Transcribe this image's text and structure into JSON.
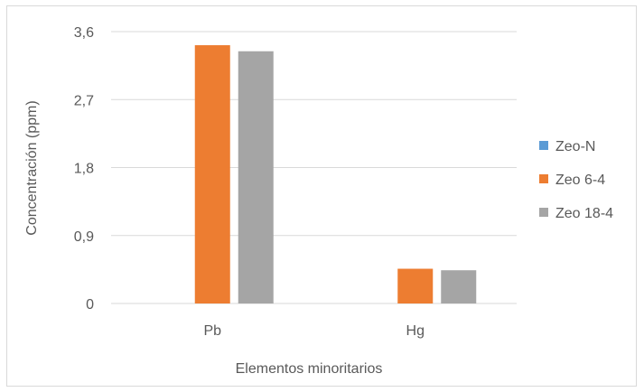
{
  "chart_data": {
    "type": "bar",
    "categories": [
      "Pb",
      "Hg"
    ],
    "series": [
      {
        "name": "Zeo-N",
        "values": [
          0,
          0
        ],
        "color": "#5b9bd5"
      },
      {
        "name": "Zeo 6-4",
        "values": [
          3.42,
          0.46
        ],
        "color": "#ed7d31"
      },
      {
        "name": "Zeo 18-4",
        "values": [
          3.34,
          0.44
        ],
        "color": "#a5a5a5"
      }
    ],
    "xlabel": "Elementos minoritarios",
    "ylabel": "Concentración (ppm)",
    "ylim": [
      0,
      3.6
    ],
    "yticks": [
      "0",
      "0,9",
      "1,8",
      "2,7",
      "3,6"
    ],
    "ytick_values": [
      0,
      0.9,
      1.8,
      2.7,
      3.6
    ],
    "grid": true,
    "legend_position": "right"
  }
}
